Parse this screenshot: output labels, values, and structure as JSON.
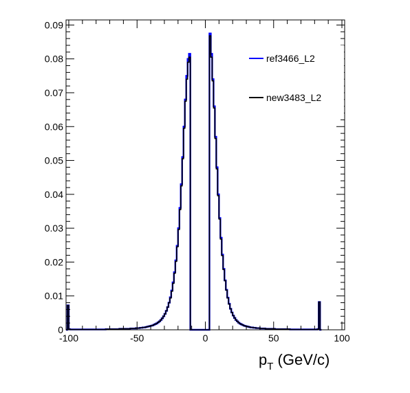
{
  "chart_data": {
    "type": "histogram",
    "title": "",
    "xlabel": {
      "main": "p",
      "sub": "T",
      "unit": " (GeV/c)"
    },
    "ylabel": "",
    "xlim": [
      -102,
      102
    ],
    "ylim": [
      0,
      0.0915
    ],
    "x_ticks": [
      -100,
      -50,
      0,
      50,
      100
    ],
    "y_ticks": [
      0,
      0.01,
      0.02,
      0.03,
      0.04,
      0.05,
      0.06,
      0.07,
      0.08,
      0.09
    ],
    "x_tick_labels": [
      "-100",
      "-50",
      "0",
      "50",
      "100"
    ],
    "y_tick_labels": [
      "0",
      "0.01",
      "0.02",
      "0.03",
      "0.04",
      "0.05",
      "0.06",
      "0.07",
      "0.08",
      "0.09"
    ],
    "grid": false,
    "legend_position": "top-right",
    "bin_width": 1,
    "x": [
      -102,
      -101,
      -100,
      -99,
      -98,
      -97,
      -96,
      -95,
      -94,
      -93,
      -92,
      -91,
      -90,
      -89,
      -88,
      -87,
      -86,
      -85,
      -84,
      -83,
      -82,
      -81,
      -80,
      -79,
      -78,
      -77,
      -76,
      -75,
      -74,
      -73,
      -72,
      -71,
      -70,
      -69,
      -68,
      -67,
      -66,
      -65,
      -64,
      -63,
      -62,
      -61,
      -60,
      -59,
      -58,
      -57,
      -56,
      -55,
      -54,
      -53,
      -52,
      -51,
      -50,
      -49,
      -48,
      -47,
      -46,
      -45,
      -44,
      -43,
      -42,
      -41,
      -40,
      -39,
      -38,
      -37,
      -36,
      -35,
      -34,
      -33,
      -32,
      -31,
      -30,
      -29,
      -28,
      -27,
      -26,
      -25,
      -24,
      -23,
      -22,
      -21,
      -20,
      -19,
      -18,
      -17,
      -16,
      -15,
      -14,
      -13,
      -12,
      -11,
      -10,
      -9,
      -8,
      -7,
      -6,
      -5,
      -4,
      -3,
      -2,
      -1,
      0,
      1,
      2,
      3,
      4,
      5,
      6,
      7,
      8,
      9,
      10,
      11,
      12,
      13,
      14,
      15,
      16,
      17,
      18,
      19,
      20,
      21,
      22,
      23,
      24,
      25,
      26,
      27,
      28,
      29,
      30,
      31,
      32,
      33,
      34,
      35,
      36,
      37,
      38,
      39,
      40,
      41,
      42,
      43,
      44,
      45,
      46,
      47,
      48,
      49,
      50,
      51,
      52,
      53,
      54,
      55,
      56,
      57,
      58,
      59,
      60,
      61,
      62,
      63,
      64,
      65,
      66,
      67,
      68,
      69,
      70,
      71,
      72,
      73,
      74,
      75,
      76,
      77,
      78,
      79,
      80,
      81,
      82,
      83,
      84,
      85,
      86,
      87,
      88,
      89,
      90,
      91,
      92,
      93,
      94,
      95,
      96,
      97,
      98,
      99,
      100,
      101
    ],
    "series": [
      {
        "name": "ref3466_L2",
        "color": "#0000ff",
        "values": [
          0,
          0.0072,
          0.0002,
          0.0001,
          0.0001,
          0.0001,
          0.0001,
          0.0001,
          0.0001,
          0.0001,
          0.0001,
          0.0001,
          0.0001,
          0.0001,
          0.0001,
          0.0001,
          0.0001,
          0.0001,
          0.0001,
          0.0001,
          0.0001,
          0.0001,
          0.0001,
          0.0001,
          0.0001,
          0.0001,
          0.0001,
          0.0001,
          0.0001,
          0.0002,
          0.0002,
          0.0002,
          0.0002,
          0.0002,
          0.0002,
          0.0002,
          0.0002,
          0.0002,
          0.0002,
          0.0003,
          0.0003,
          0.0003,
          0.0003,
          0.0003,
          0.0003,
          0.0003,
          0.0003,
          0.0004,
          0.0004,
          0.0004,
          0.0004,
          0.0005,
          0.0005,
          0.0005,
          0.0006,
          0.0006,
          0.0007,
          0.0007,
          0.0008,
          0.0009,
          0.001,
          0.0011,
          0.0012,
          0.0013,
          0.0015,
          0.0017,
          0.0019,
          0.0022,
          0.0025,
          0.0029,
          0.0034,
          0.004,
          0.0047,
          0.0056,
          0.0067,
          0.008,
          0.0096,
          0.0116,
          0.014,
          0.017,
          0.0205,
          0.0248,
          0.03,
          0.036,
          0.043,
          0.051,
          0.06,
          0.068,
          0.075,
          0.08,
          0.0815,
          0,
          0,
          0,
          0,
          0,
          0,
          0,
          0,
          0,
          0,
          0,
          0,
          0,
          0,
          0.0875,
          0.0815,
          0.074,
          0.066,
          0.057,
          0.048,
          0.04,
          0.033,
          0.0272,
          0.0222,
          0.018,
          0.0146,
          0.0118,
          0.0095,
          0.0077,
          0.0062,
          0.0051,
          0.0042,
          0.0035,
          0.0029,
          0.0025,
          0.0021,
          0.0018,
          0.0016,
          0.0014,
          0.0012,
          0.0011,
          0.001,
          0.0009,
          0.0008,
          0.0007,
          0.0007,
          0.0006,
          0.0006,
          0.0005,
          0.0005,
          0.0005,
          0.0004,
          0.0004,
          0.0004,
          0.0004,
          0.0003,
          0.0003,
          0.0003,
          0.0003,
          0.0003,
          0.0003,
          0.0003,
          0.0002,
          0.0002,
          0.0002,
          0.0002,
          0.0002,
          0.0002,
          0.0002,
          0.0002,
          0.0002,
          0.0002,
          0.0002,
          0.0001,
          0.0001,
          0.0001,
          0.0001,
          0.0001,
          0.0001,
          0.0001,
          0.0001,
          0.0001,
          0.0001,
          0.0001,
          0.0001,
          0.0001,
          0.0001,
          0.0001,
          0.0001,
          0.0001,
          0.0001,
          0.0001,
          0.0001,
          0.0002,
          0.0082,
          0
        ]
      },
      {
        "name": "new3483_L2",
        "color": "#000000",
        "values": [
          0,
          0.0072,
          0.0002,
          0.0001,
          0.0001,
          0.0001,
          0.0001,
          0.0001,
          0.0001,
          0.0001,
          0.0001,
          0.0001,
          0.0001,
          0.0001,
          0.0001,
          0.0001,
          0.0001,
          0.0001,
          0.0001,
          0.0001,
          0.0001,
          0.0001,
          0.0001,
          0.0001,
          0.0001,
          0.0001,
          0.0001,
          0.0001,
          0.0001,
          0.0002,
          0.0002,
          0.0002,
          0.0002,
          0.0002,
          0.0002,
          0.0002,
          0.0002,
          0.0002,
          0.0002,
          0.0003,
          0.0003,
          0.0003,
          0.0003,
          0.0003,
          0.0003,
          0.0003,
          0.0003,
          0.0004,
          0.0004,
          0.0004,
          0.0004,
          0.0005,
          0.0005,
          0.0005,
          0.0006,
          0.0006,
          0.0007,
          0.0007,
          0.0008,
          0.0009,
          0.001,
          0.0011,
          0.0012,
          0.0013,
          0.0015,
          0.0017,
          0.0019,
          0.0022,
          0.0025,
          0.0029,
          0.0034,
          0.004,
          0.0047,
          0.0056,
          0.0067,
          0.008,
          0.0094,
          0.0114,
          0.0137,
          0.0167,
          0.0202,
          0.0245,
          0.0296,
          0.0355,
          0.0425,
          0.0505,
          0.0595,
          0.0675,
          0.074,
          0.079,
          0.0805,
          0,
          0,
          0,
          0,
          0,
          0,
          0,
          0,
          0,
          0,
          0,
          0,
          0,
          0,
          0.0868,
          0.0805,
          0.0735,
          0.0655,
          0.0565,
          0.0475,
          0.0396,
          0.0327,
          0.0268,
          0.0219,
          0.0178,
          0.0145,
          0.0117,
          0.0094,
          0.0076,
          0.0062,
          0.0051,
          0.0042,
          0.0035,
          0.0029,
          0.0025,
          0.0021,
          0.0018,
          0.0016,
          0.0014,
          0.0012,
          0.0011,
          0.001,
          0.0009,
          0.0008,
          0.0007,
          0.0007,
          0.0006,
          0.0006,
          0.0005,
          0.0005,
          0.0005,
          0.0004,
          0.0004,
          0.0004,
          0.0004,
          0.0003,
          0.0003,
          0.0003,
          0.0003,
          0.0003,
          0.0003,
          0.0003,
          0.0002,
          0.0002,
          0.0002,
          0.0002,
          0.0002,
          0.0002,
          0.0002,
          0.0002,
          0.0002,
          0.0002,
          0.0002,
          0.0001,
          0.0001,
          0.0001,
          0.0001,
          0.0001,
          0.0001,
          0.0001,
          0.0001,
          0.0001,
          0.0001,
          0.0001,
          0.0001,
          0.0001,
          0.0001,
          0.0001,
          0.0001,
          0.0001,
          0.0001,
          0.0001,
          0.0001,
          0.0002,
          0.0082,
          0
        ]
      }
    ]
  }
}
